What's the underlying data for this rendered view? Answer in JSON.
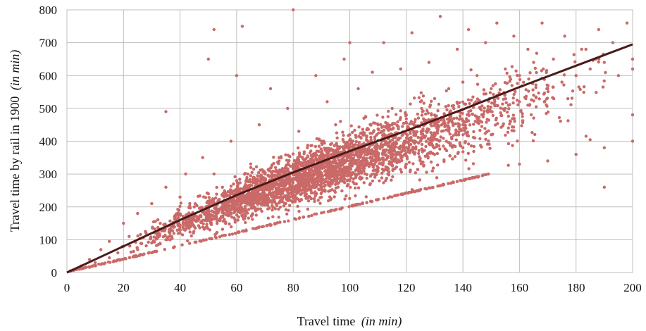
{
  "chart_data": {
    "type": "scatter",
    "xlabel": "Travel time",
    "xlabel_unit": "(in min)",
    "ylabel": "Travel time by rail in 1900",
    "ylabel_unit": "(in min)",
    "xlim": [
      0,
      200
    ],
    "ylim": [
      0,
      800
    ],
    "x_ticks": [
      0,
      20,
      40,
      60,
      80,
      100,
      120,
      140,
      160,
      180,
      200
    ],
    "y_ticks": [
      0,
      100,
      200,
      300,
      400,
      500,
      600,
      700,
      800
    ],
    "grid": true,
    "point_color": "#c96a68",
    "trend_color": "#4a1a1a",
    "scatter_sample": [
      [
        5,
        20
      ],
      [
        8,
        40
      ],
      [
        10,
        30
      ],
      [
        12,
        70
      ],
      [
        15,
        45
      ],
      [
        15,
        95
      ],
      [
        18,
        60
      ],
      [
        20,
        80
      ],
      [
        20,
        150
      ],
      [
        22,
        110
      ],
      [
        25,
        70
      ],
      [
        25,
        180
      ],
      [
        28,
        120
      ],
      [
        30,
        90
      ],
      [
        30,
        210
      ],
      [
        33,
        150
      ],
      [
        35,
        100
      ],
      [
        35,
        260
      ],
      [
        35,
        490
      ],
      [
        38,
        170
      ],
      [
        40,
        120
      ],
      [
        40,
        230
      ],
      [
        42,
        300
      ],
      [
        45,
        140
      ],
      [
        45,
        200
      ],
      [
        48,
        350
      ],
      [
        50,
        160
      ],
      [
        50,
        240
      ],
      [
        50,
        650
      ],
      [
        52,
        300
      ],
      [
        52,
        740
      ],
      [
        55,
        170
      ],
      [
        55,
        260
      ],
      [
        58,
        400
      ],
      [
        60,
        190
      ],
      [
        60,
        280
      ],
      [
        60,
        600
      ],
      [
        62,
        750
      ],
      [
        65,
        210
      ],
      [
        65,
        320
      ],
      [
        68,
        450
      ],
      [
        70,
        220
      ],
      [
        70,
        300
      ],
      [
        72,
        560
      ],
      [
        75,
        240
      ],
      [
        75,
        350
      ],
      [
        78,
        500
      ],
      [
        80,
        250
      ],
      [
        80,
        330
      ],
      [
        80,
        800
      ],
      [
        82,
        430
      ],
      [
        85,
        270
      ],
      [
        85,
        380
      ],
      [
        88,
        600
      ],
      [
        90,
        290
      ],
      [
        90,
        400
      ],
      [
        92,
        520
      ],
      [
        95,
        300
      ],
      [
        95,
        450
      ],
      [
        98,
        650
      ],
      [
        100,
        320
      ],
      [
        100,
        420
      ],
      [
        100,
        700
      ],
      [
        103,
        560
      ],
      [
        105,
        340
      ],
      [
        105,
        470
      ],
      [
        108,
        610
      ],
      [
        110,
        350
      ],
      [
        110,
        450
      ],
      [
        112,
        700
      ],
      [
        115,
        370
      ],
      [
        115,
        500
      ],
      [
        118,
        620
      ],
      [
        120,
        380
      ],
      [
        120,
        480
      ],
      [
        122,
        730
      ],
      [
        125,
        400
      ],
      [
        125,
        520
      ],
      [
        128,
        640
      ],
      [
        130,
        420
      ],
      [
        130,
        530
      ],
      [
        132,
        780
      ],
      [
        135,
        430
      ],
      [
        135,
        560
      ],
      [
        138,
        680
      ],
      [
        140,
        450
      ],
      [
        140,
        580
      ],
      [
        142,
        740
      ],
      [
        145,
        470
      ],
      [
        145,
        600
      ],
      [
        148,
        700
      ],
      [
        150,
        490
      ],
      [
        150,
        560
      ],
      [
        152,
        760
      ],
      [
        155,
        500
      ],
      [
        155,
        620
      ],
      [
        158,
        720
      ],
      [
        160,
        520
      ],
      [
        160,
        600
      ],
      [
        163,
        680
      ],
      [
        165,
        540
      ],
      [
        165,
        640
      ],
      [
        168,
        760
      ],
      [
        170,
        560
      ],
      [
        172,
        650
      ],
      [
        175,
        580
      ],
      [
        176,
        720
      ],
      [
        180,
        600
      ],
      [
        182,
        680
      ],
      [
        185,
        620
      ],
      [
        188,
        740
      ],
      [
        190,
        260
      ],
      [
        190,
        640
      ],
      [
        193,
        700
      ],
      [
        195,
        600
      ],
      [
        198,
        760
      ],
      [
        200,
        650
      ],
      [
        60,
        240
      ],
      [
        70,
        260
      ],
      [
        80,
        230
      ],
      [
        90,
        260
      ],
      [
        100,
        280
      ],
      [
        110,
        310
      ],
      [
        120,
        330
      ],
      [
        130,
        360
      ],
      [
        140,
        380
      ],
      [
        150,
        420
      ],
      [
        160,
        330
      ],
      [
        170,
        340
      ],
      [
        180,
        360
      ],
      [
        190,
        380
      ],
      [
        200,
        400
      ]
    ],
    "lower_bound": {
      "x": [
        0,
        150
      ],
      "y": [
        0,
        300
      ]
    },
    "trend_line": {
      "x": [
        0,
        20,
        40,
        60,
        80,
        100,
        120,
        140,
        160,
        180,
        200
      ],
      "y": [
        0,
        80,
        160,
        236,
        305,
        370,
        432,
        497,
        565,
        630,
        695
      ]
    }
  }
}
